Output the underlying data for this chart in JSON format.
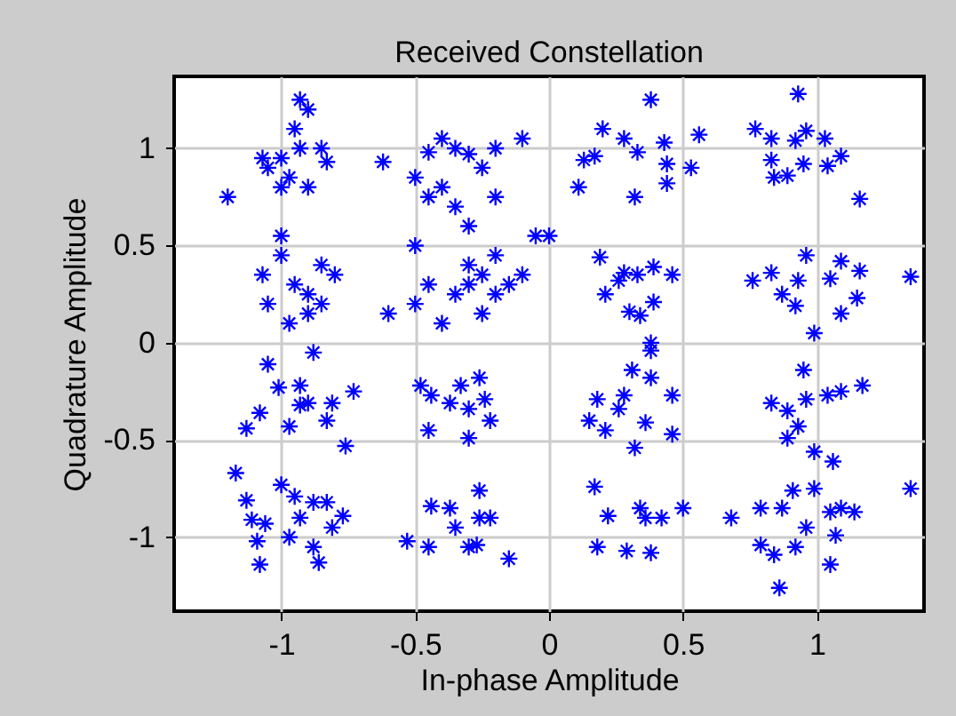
{
  "chart_data": {
    "type": "scatter",
    "title": "Received Constellation",
    "xlabel": "In-phase Amplitude",
    "ylabel": "Quadrature Amplitude",
    "xlim": [
      -1.4,
      1.4
    ],
    "ylim": [
      -1.38,
      1.37
    ],
    "xticks": [
      -1,
      -0.5,
      0,
      0.5,
      1
    ],
    "yticks": [
      -1,
      -0.5,
      0,
      0.5,
      1
    ],
    "grid": true,
    "marker": "cross",
    "series": [
      {
        "color": "#0000ff",
        "x": [
          -1.2,
          -1.05,
          -1.0,
          -1.07,
          -0.93,
          -0.9,
          -0.93,
          -0.95,
          -0.85,
          -0.83,
          -0.9,
          -1.0,
          -0.97,
          -0.62,
          -0.45,
          -0.5,
          -0.35,
          -0.3,
          -0.2,
          -0.1,
          -0.25,
          -0.4,
          -0.35,
          -0.3,
          -0.45,
          -0.5,
          -0.2,
          -0.4,
          0.0,
          -1.07,
          -1.05,
          -0.95,
          -0.9,
          -0.85,
          -0.8,
          -1.0,
          -0.97,
          -0.9,
          -1.0,
          -0.85,
          -0.6,
          -0.5,
          -0.45,
          -0.35,
          -0.3,
          -0.25,
          -0.2,
          -0.15,
          -0.3,
          -0.25,
          -0.4,
          -0.2,
          -0.1,
          -0.05,
          0.38,
          0.2,
          0.13,
          0.17,
          0.28,
          0.33,
          0.43,
          0.44,
          0.44,
          0.32,
          0.11,
          0.53,
          0.56,
          0.93,
          0.77,
          0.83,
          0.92,
          0.96,
          1.03,
          0.83,
          0.84,
          0.95,
          1.04,
          1.09,
          1.16,
          0.89,
          0.19,
          0.21,
          0.28,
          0.33,
          0.39,
          0.46,
          0.3,
          0.34,
          0.39,
          0.26,
          0.38,
          0.76,
          0.83,
          0.87,
          0.93,
          0.96,
          0.99,
          1.05,
          1.09,
          1.15,
          1.09,
          1.35,
          1.16,
          0.92,
          -1.05,
          -0.88,
          -0.93,
          -1.01,
          -0.9,
          -1.08,
          -1.13,
          -0.97,
          -0.83,
          -0.81,
          -0.73,
          -0.76,
          -0.93,
          -0.48,
          -0.44,
          -0.33,
          -0.26,
          -0.3,
          -0.22,
          -0.45,
          -0.3,
          -0.37,
          -0.24,
          -1.17,
          -1.13,
          -1.11,
          -1.06,
          -1.09,
          -1.08,
          -1.0,
          -0.95,
          -0.88,
          -0.83,
          -0.77,
          -0.93,
          -0.97,
          -0.88,
          -0.86,
          -0.81,
          -0.53,
          -0.44,
          -0.45,
          -0.37,
          -0.35,
          -0.26,
          -0.26,
          -0.3,
          -0.27,
          -0.22,
          -0.15,
          0.38,
          0.31,
          0.18,
          0.28,
          0.38,
          0.46,
          0.15,
          0.21,
          0.32,
          0.46,
          0.36,
          0.26,
          0.95,
          0.83,
          0.89,
          0.96,
          1.04,
          1.09,
          1.17,
          0.89,
          0.93,
          0.99,
          1.06,
          0.17,
          0.22,
          0.34,
          0.36,
          0.5,
          0.18,
          0.29,
          0.38,
          0.42,
          0.68,
          0.79,
          0.79,
          0.84,
          0.87,
          0.91,
          0.99,
          0.96,
          0.92,
          1.05,
          1.09,
          1.14,
          1.07,
          1.05,
          0.86,
          1.35
        ],
        "values": [
          0.75,
          0.9,
          0.95,
          0.95,
          1.0,
          1.2,
          1.25,
          1.1,
          1.0,
          0.93,
          0.8,
          0.8,
          0.85,
          0.93,
          0.98,
          0.85,
          1.0,
          0.97,
          1.0,
          1.05,
          0.9,
          0.8,
          0.7,
          0.6,
          0.75,
          0.5,
          0.75,
          1.05,
          0.55,
          0.35,
          0.2,
          0.3,
          0.25,
          0.4,
          0.35,
          0.45,
          0.1,
          0.15,
          0.55,
          0.2,
          0.15,
          0.2,
          0.3,
          0.25,
          0.3,
          0.35,
          0.25,
          0.3,
          0.4,
          0.15,
          0.1,
          0.45,
          0.35,
          0.55,
          1.25,
          1.1,
          0.94,
          0.96,
          1.05,
          0.98,
          1.03,
          0.92,
          0.82,
          0.75,
          0.8,
          0.9,
          1.07,
          1.28,
          1.1,
          1.05,
          1.04,
          1.09,
          1.05,
          0.94,
          0.85,
          0.92,
          0.91,
          0.96,
          0.74,
          0.86,
          0.44,
          0.25,
          0.36,
          0.35,
          0.39,
          0.35,
          0.16,
          0.14,
          0.21,
          0.32,
          0.0,
          0.32,
          0.36,
          0.25,
          0.32,
          0.45,
          0.05,
          0.33,
          0.42,
          0.23,
          0.15,
          0.34,
          0.37,
          0.19,
          -0.11,
          -0.05,
          -0.22,
          -0.23,
          -0.31,
          -0.36,
          -0.44,
          -0.43,
          -0.4,
          -0.31,
          -0.25,
          -0.53,
          -0.32,
          -0.22,
          -0.27,
          -0.22,
          -0.18,
          -0.34,
          -0.4,
          -0.45,
          -0.49,
          -0.31,
          -0.29,
          -0.67,
          -0.81,
          -0.91,
          -0.93,
          -1.02,
          -1.14,
          -0.73,
          -0.79,
          -0.82,
          -0.82,
          -0.89,
          -0.9,
          -1.0,
          -1.05,
          -1.13,
          -0.95,
          -1.02,
          -0.84,
          -1.05,
          -0.85,
          -0.95,
          -0.76,
          -0.9,
          -1.05,
          -1.04,
          -0.9,
          -1.11,
          -0.04,
          -0.14,
          -0.29,
          -0.27,
          -0.18,
          -0.27,
          -0.4,
          -0.45,
          -0.54,
          -0.47,
          -0.41,
          -0.34,
          -0.14,
          -0.31,
          -0.35,
          -0.29,
          -0.27,
          -0.25,
          -0.22,
          -0.49,
          -0.43,
          -0.56,
          -0.61,
          -0.74,
          -0.89,
          -0.85,
          -0.9,
          -0.85,
          -1.05,
          -1.07,
          -1.08,
          -0.9,
          -0.9,
          -0.85,
          -1.04,
          -1.09,
          -0.85,
          -0.76,
          -0.75,
          -0.95,
          -1.05,
          -0.87,
          -0.85,
          -0.87,
          -0.99,
          -1.14,
          -1.26,
          -0.75
        ]
      }
    ]
  }
}
